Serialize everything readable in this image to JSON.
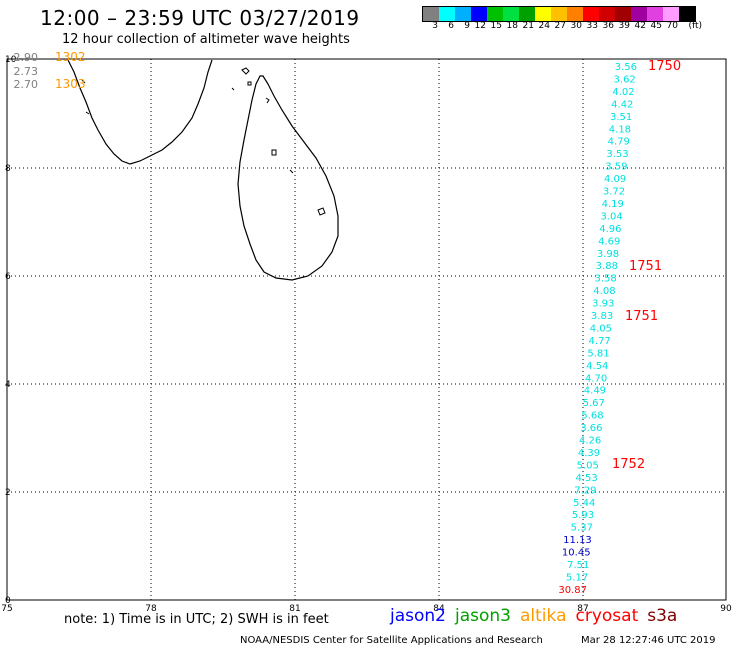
{
  "title": "12:00 – 23:59 UTC 03/27/2019",
  "subtitle": "12 hour collection of altimeter wave heights",
  "legend": {
    "unit": "(ft)",
    "colors": [
      "#808080",
      "#00ffff",
      "#00b0ff",
      "#0000ff",
      "#00c000",
      "#00e040",
      "#00a000",
      "#ffff00",
      "#ffc000",
      "#ff8000",
      "#ff0000",
      "#d00000",
      "#a00000",
      "#a000a0",
      "#e040e0",
      "#ff9cff",
      "#000000"
    ],
    "labels": [
      "3",
      "6",
      "9",
      "12",
      "15",
      "18",
      "21",
      "24",
      "27",
      "30",
      "33",
      "36",
      "39",
      "42",
      "45",
      "70"
    ]
  },
  "axes": {
    "x_ticks": [
      "75",
      "78",
      "81",
      "84",
      "87",
      "90"
    ],
    "y_ticks": [
      "0",
      "2",
      "4",
      "6",
      "8",
      "10"
    ]
  },
  "map_labels": {
    "left_group": [
      {
        "value": "2.90",
        "time": "1302"
      },
      {
        "value": "2.73",
        "time": ""
      },
      {
        "value": "2.70",
        "time": "1303"
      }
    ],
    "track_values": [
      "3.56",
      "3.62",
      "4.02",
      "4.42",
      "3.51",
      "4.18",
      "4.79",
      "3.53",
      "3.59",
      "4.09",
      "3.72",
      "4.19",
      "3.04",
      "4.96",
      "4.69",
      "3.98",
      "3.88",
      "3.58",
      "4.08",
      "3.93",
      "3.83",
      "4.05",
      "4.77",
      "5.81",
      "4.54",
      "4.70",
      "4.49",
      "5.67",
      "5.68",
      "3.66",
      "4.26",
      "4.39",
      "5.05",
      "4.53",
      "7.29",
      "5.44",
      "5.93",
      "5.37",
      "11.13",
      "10.45",
      "7.51",
      "5.17",
      "30.87"
    ],
    "time_labels": [
      "1750",
      "1751",
      "1751",
      "1752"
    ]
  },
  "note": "note: 1) Time is in UTC; 2) SWH is in feet",
  "satellites": [
    {
      "name": "jason2",
      "color": "#0000ff"
    },
    {
      "name": "jason3",
      "color": "#00a000"
    },
    {
      "name": "altika",
      "color": "#ff9900"
    },
    {
      "name": "cryosat",
      "color": "#ff0000"
    },
    {
      "name": "s3a",
      "color": "#800000"
    }
  ],
  "footer": {
    "left": "NOAA/NESDIS Center for Satellite Applications and Research",
    "right": "Mar 28 12:27:46 UTC 2019"
  },
  "value_colors": {
    "cyan": "#00e0e0",
    "blue": "#0000cc",
    "red": "#ff0000",
    "orange": "#ff9900",
    "gray": "#808080"
  }
}
